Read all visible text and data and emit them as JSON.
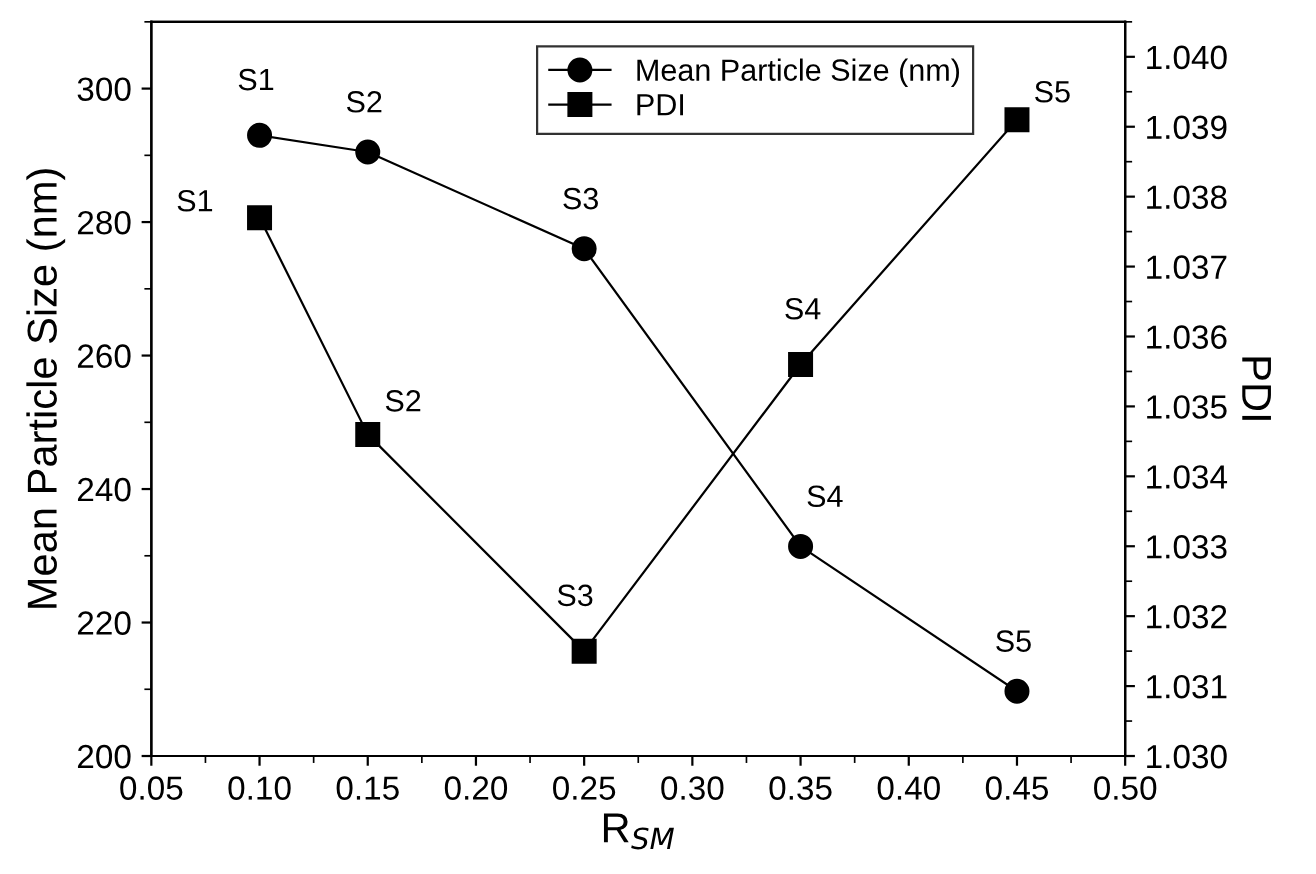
{
  "chart_data": {
    "type": "line",
    "xlabel": "R$_{SM}$",
    "ylabel": "Mean Particle Size (nm)",
    "y2label": "PDI",
    "x": [
      0.1,
      0.15,
      0.25,
      0.35,
      0.45
    ],
    "series": [
      {
        "name": "Mean Particle Size (nm)",
        "color": "#000000",
        "marker": "circle",
        "values": [
          293,
          290.5,
          276,
          231.4,
          209.7
        ],
        "value_labels": [
          "S1",
          "S2",
          "S3",
          "S4",
          "S5"
        ]
      },
      {
        "name": "PDI",
        "color": "#000000",
        "marker": "square",
        "axis": "y2",
        "values": [
          1.0377,
          1.0346,
          1.0315,
          1.0356,
          1.0391
        ],
        "value_labels": [
          "S1",
          "S2",
          "S3",
          "S4",
          "S5"
        ]
      }
    ],
    "xlim": [
      0.05,
      0.5
    ],
    "xticks": [
      {
        "value": 0.05,
        "label": "0.05"
      },
      {
        "value": 0.1,
        "label": "0.10"
      },
      {
        "value": 0.15,
        "label": "0.15"
      },
      {
        "value": 0.2,
        "label": "0.20"
      },
      {
        "value": 0.25,
        "label": "0.25"
      },
      {
        "value": 0.3,
        "label": "0.30"
      },
      {
        "value": 0.35,
        "label": "0.35"
      },
      {
        "value": 0.4,
        "label": "0.40"
      },
      {
        "value": 0.45,
        "label": "0.45"
      },
      {
        "value": 0.5,
        "label": "0.50"
      }
    ],
    "ylim": [
      200,
      310
    ],
    "yticks": [
      200,
      220,
      240,
      260,
      280,
      300
    ],
    "y2lim": [
      1.03,
      1.0405
    ],
    "y2ticks": [
      {
        "value": 1.03,
        "label": "1.030"
      },
      {
        "value": 1.031,
        "label": "1.031"
      },
      {
        "value": 1.032,
        "label": "1.032"
      },
      {
        "value": 1.033,
        "label": "1.033"
      },
      {
        "value": 1.034,
        "label": "1.034"
      },
      {
        "value": 1.035,
        "label": "1.035"
      },
      {
        "value": 1.036,
        "label": "1.036"
      },
      {
        "value": 1.037,
        "label": "1.037"
      },
      {
        "value": 1.038,
        "label": "1.038"
      },
      {
        "value": 1.039,
        "label": "1.039"
      },
      {
        "value": 1.04,
        "label": "1.040"
      }
    ],
    "grid": false,
    "legend": "top",
    "line_style": "solid"
  }
}
